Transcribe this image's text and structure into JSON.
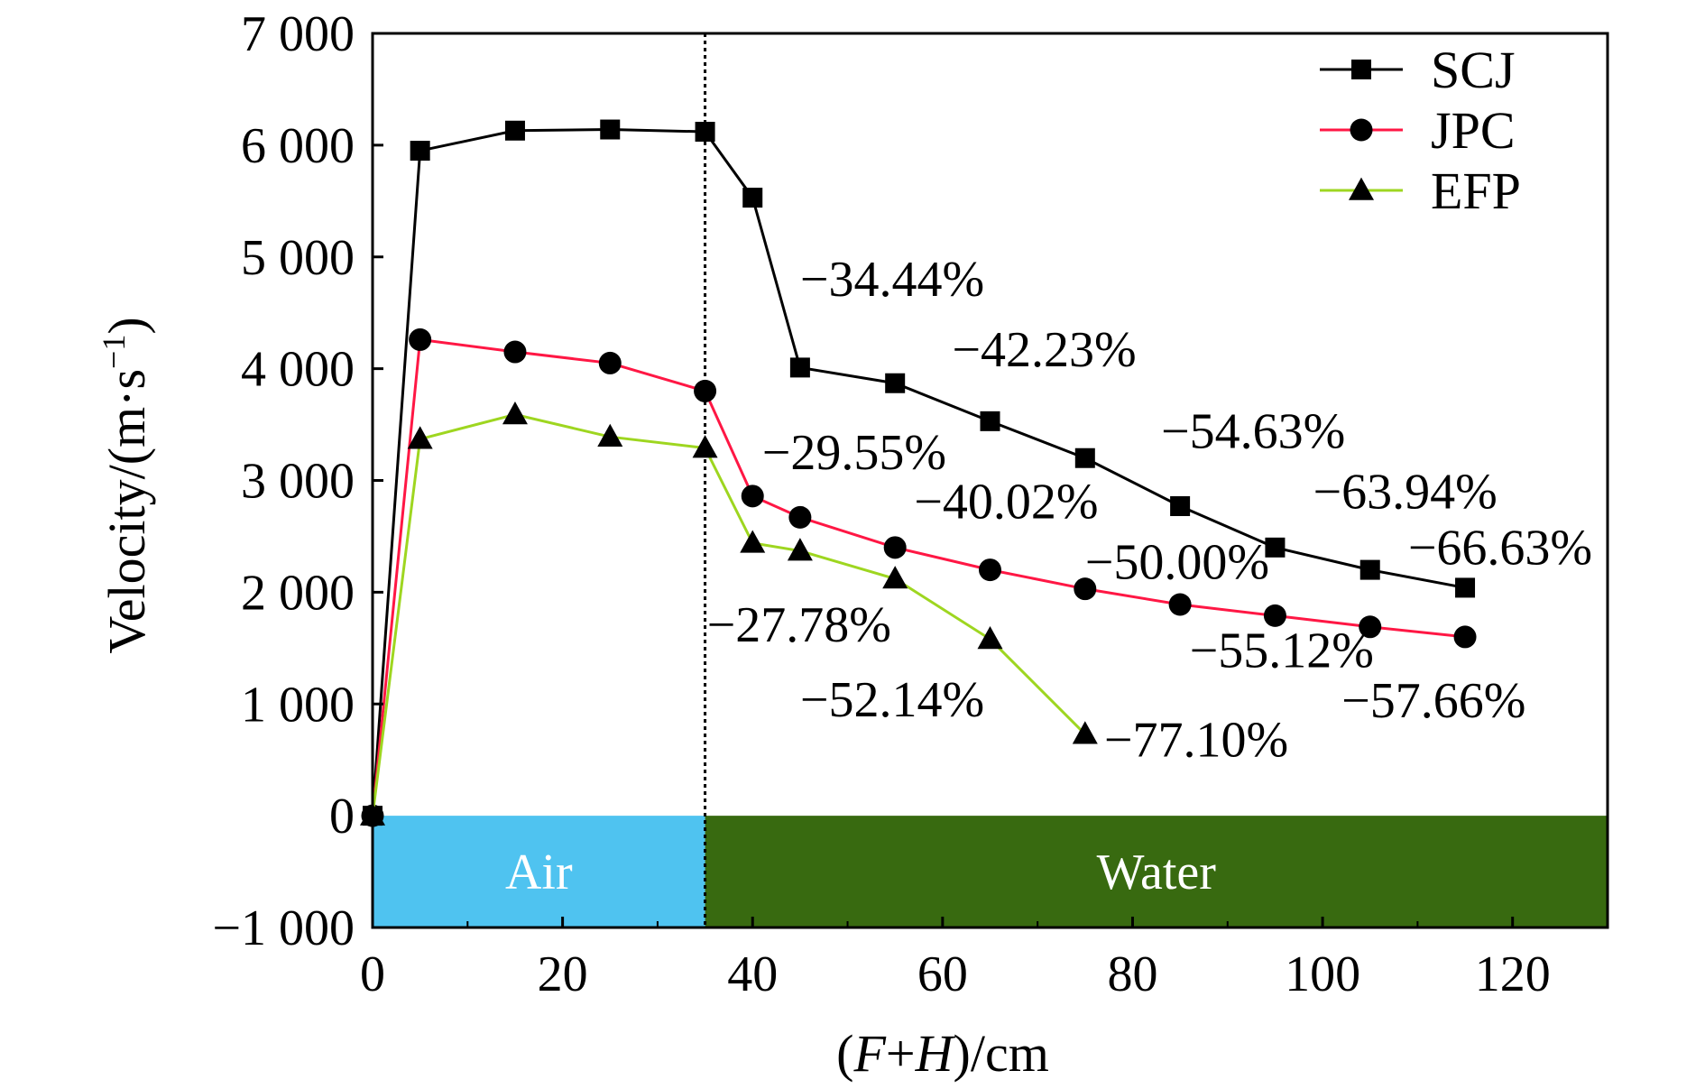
{
  "chart_data": {
    "type": "line",
    "xlabel": {
      "prefix": "(",
      "F": "F",
      "plus": "+",
      "H": "H",
      "suffix": ")/cm"
    },
    "ylabel": {
      "base": "Velocity/(m·s",
      "sup": "−1",
      "close": ")"
    },
    "xlim": [
      0,
      130
    ],
    "ylim": [
      -1000,
      7000
    ],
    "xticks": [
      0,
      20,
      40,
      60,
      80,
      100,
      120
    ],
    "yticks": [
      -1000,
      0,
      1000,
      2000,
      3000,
      4000,
      5000,
      6000,
      7000
    ],
    "xtick_labels": [
      "0",
      "20",
      "40",
      "60",
      "80",
      "100",
      "120"
    ],
    "ytick_labels": [
      "−1 000",
      "0",
      "1 000",
      "2 000",
      "3 000",
      "4 000",
      "5 000",
      "6 000",
      "7 000"
    ],
    "divider_x": 35,
    "regions": [
      {
        "label": "Air",
        "x0": 0,
        "x1": 35,
        "y0": -1000,
        "y1": 0,
        "color": "#4fc3f0"
      },
      {
        "label": "Water",
        "x0": 35,
        "x1": 130,
        "y0": -1000,
        "y1": 0,
        "color": "#386a10"
      }
    ],
    "legend_position": "top-right",
    "grid": false,
    "series": [
      {
        "name": "SCJ",
        "color": "#000000",
        "marker": "square",
        "x": [
          0,
          5,
          15,
          25,
          35,
          40,
          45,
          55,
          65,
          75,
          85,
          95,
          105,
          115
        ],
        "y": [
          0,
          5950,
          6130,
          6140,
          6120,
          5530,
          4010,
          3870,
          3530,
          3200,
          2770,
          2400,
          2200,
          2040
        ]
      },
      {
        "name": "JPC",
        "color": "#ff1744",
        "marker": "circle",
        "x": [
          0,
          5,
          15,
          25,
          35,
          40,
          45,
          55,
          65,
          75,
          85,
          95,
          105,
          115
        ],
        "y": [
          0,
          4260,
          4150,
          4050,
          3800,
          2860,
          2670,
          2400,
          2200,
          2030,
          1890,
          1790,
          1690,
          1600
        ]
      },
      {
        "name": "EFP",
        "color": "#9ed620",
        "marker": "triangle",
        "x": [
          0,
          5,
          15,
          25,
          35,
          40,
          45,
          55,
          65,
          75
        ],
        "y": [
          0,
          3370,
          3590,
          3390,
          3290,
          2440,
          2370,
          2120,
          1580,
          730
        ]
      }
    ],
    "annotations": [
      {
        "text": "−34.44%",
        "x": 45,
        "y": 4650
      },
      {
        "text": "−42.23%",
        "x": 61,
        "y": 4020
      },
      {
        "text": "−54.63%",
        "x": 83,
        "y": 3290
      },
      {
        "text": "−63.94%",
        "x": 99,
        "y": 2750
      },
      {
        "text": "−66.63%",
        "x": 109,
        "y": 2250
      },
      {
        "text": "−29.55%",
        "x": 41,
        "y": 3100
      },
      {
        "text": "−40.02%",
        "x": 57,
        "y": 2660
      },
      {
        "text": "−50.00%",
        "x": 75,
        "y": 2120
      },
      {
        "text": "−55.12%",
        "x": 86,
        "y": 1330
      },
      {
        "text": "−57.66%",
        "x": 102,
        "y": 880
      },
      {
        "text": "−27.78%",
        "x": 35.2,
        "y": 1560
      },
      {
        "text": "−52.14%",
        "x": 45,
        "y": 890
      },
      {
        "text": "−77.10%",
        "x": 77,
        "y": 530
      }
    ]
  }
}
